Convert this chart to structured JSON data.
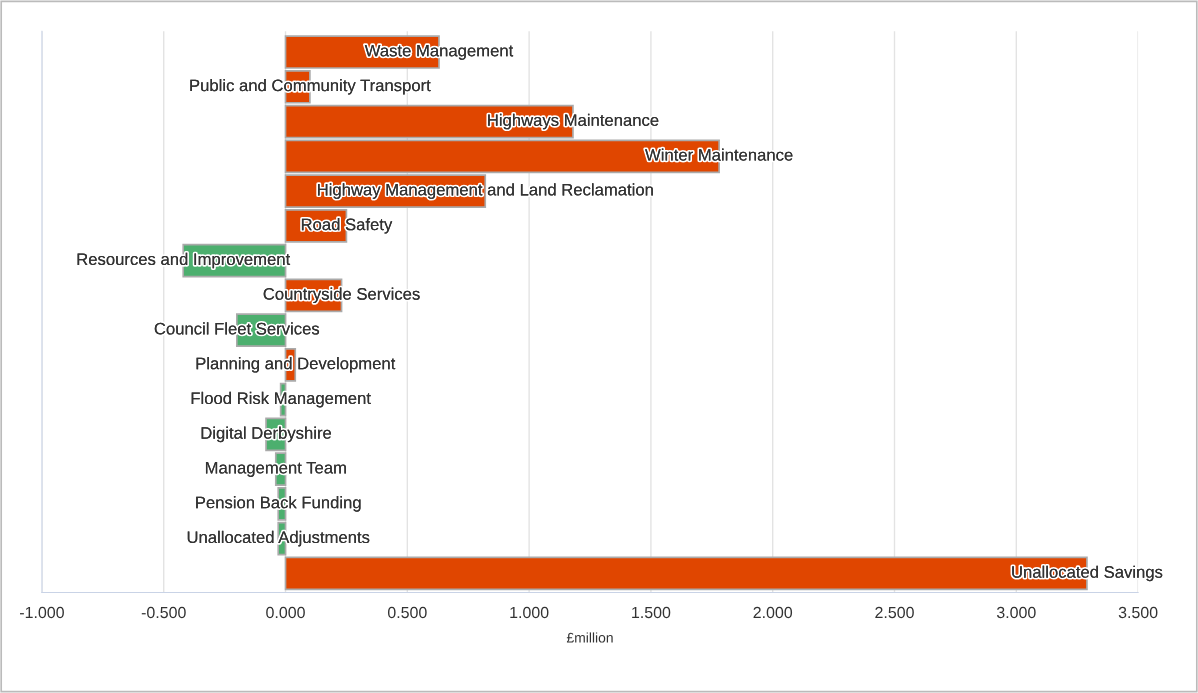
{
  "chart_data": {
    "type": "bar",
    "orientation": "horizontal",
    "xlabel": "£million",
    "categories": [
      "Waste Management",
      "Public and Community Transport",
      "Highways Maintenance",
      "Winter Maintenance",
      "Highway Management and Land Reclamation",
      "Road Safety",
      "Resources and Improvement",
      "Countryside Services",
      "Council Fleet Services",
      "Planning and Development",
      "Flood Risk Management",
      "Digital Derbyshire",
      "Management Team",
      "Pension Back Funding",
      "Unallocated Adjustments",
      "Unallocated Savings"
    ],
    "values": [
      0.63,
      0.1,
      1.18,
      1.78,
      0.82,
      0.25,
      -0.42,
      0.23,
      -0.2,
      0.04,
      -0.02,
      -0.08,
      -0.04,
      -0.03,
      -0.03,
      3.29
    ],
    "colors": [
      "#e04600",
      "#e04600",
      "#e04600",
      "#e04600",
      "#e04600",
      "#e04600",
      "#4caf6e",
      "#e04600",
      "#4caf6e",
      "#e04600",
      "#4caf6e",
      "#4caf6e",
      "#4caf6e",
      "#4caf6e",
      "#4caf6e",
      "#e04600"
    ],
    "xlim": [
      -1.0,
      3.5
    ],
    "xticks": [
      {
        "value": -1.0,
        "label": "-1.000"
      },
      {
        "value": -0.5,
        "label": "-0.500"
      },
      {
        "value": 0,
        "label": "0.000"
      },
      {
        "value": 0.5,
        "label": "0.500"
      },
      {
        "value": 1.0,
        "label": "1.000"
      },
      {
        "value": 1.5,
        "label": "1.500"
      },
      {
        "value": 2.0,
        "label": "2.000"
      },
      {
        "value": 2.5,
        "label": "2.500"
      },
      {
        "value": 3.0,
        "label": "3.000"
      },
      {
        "value": 3.5,
        "label": "3.500"
      }
    ],
    "grid": "x",
    "tick_labels": "x"
  }
}
